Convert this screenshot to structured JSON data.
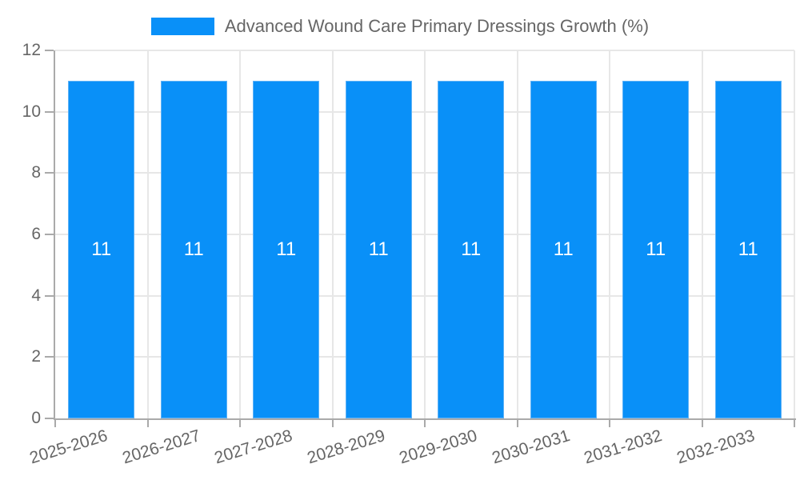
{
  "legend": {
    "label": "Advanced Wound Care Primary Dressings Growth (%)"
  },
  "chart_data": {
    "type": "bar",
    "title": "Advanced Wound Care Primary Dressings Growth (%)",
    "categories": [
      "2025-2026",
      "2026-2027",
      "2027-2028",
      "2028-2029",
      "2029-2030",
      "2030-2031",
      "2031-2032",
      "2032-2033"
    ],
    "series": [
      {
        "name": "Advanced Wound Care Primary Dressings Growth (%)",
        "values": [
          11,
          11,
          11,
          11,
          11,
          11,
          11,
          11
        ]
      }
    ],
    "xlabel": "",
    "ylabel": "",
    "ylim": [
      0,
      12
    ],
    "yticks": [
      0,
      2,
      4,
      6,
      8,
      10,
      12
    ],
    "grid": true,
    "legend_position": "top",
    "x_tick_rotation_deg": -17,
    "bar_value_labels_shown": true
  },
  "colors": {
    "bar_fill": "#0990f8",
    "bar_border": "#5fb2f7",
    "grid_line": "#e7e7e7",
    "axis_line": "#aaaaaa",
    "tick_label": "#666666",
    "legend_text": "#666666",
    "value_label": "#ffffff",
    "background": "#ffffff"
  }
}
